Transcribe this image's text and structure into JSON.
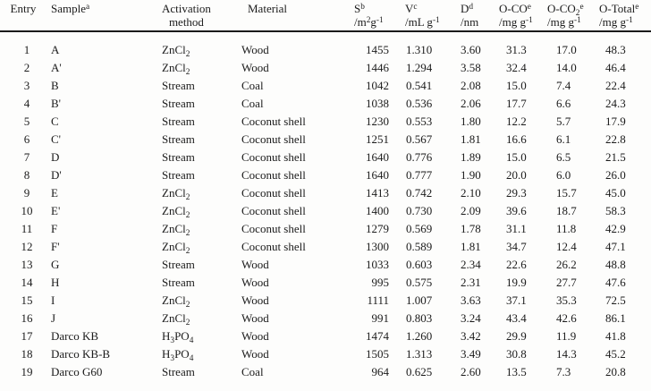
{
  "colors": {
    "background": "#fdfdfc",
    "text": "#1b1b1b",
    "rule": "#1a1a1a"
  },
  "table": {
    "columns": [
      {
        "id": "entry",
        "line1": "Entry",
        "line2": ""
      },
      {
        "id": "sample",
        "line1": "Sample^{a}",
        "line2": ""
      },
      {
        "id": "activation",
        "line1": "Activation",
        "line2": "method"
      },
      {
        "id": "material",
        "line1": "Material",
        "line2": ""
      },
      {
        "id": "s",
        "line1": "S^{b}",
        "line2": "/m^{2}g^{-1}"
      },
      {
        "id": "v",
        "line1": "V^{c}",
        "line2": "/mL g^{-1}"
      },
      {
        "id": "d",
        "line1": "D^{d}",
        "line2": "/nm"
      },
      {
        "id": "o_co",
        "line1": "O-CO^{e}",
        "line2": "/mg g^{-1}"
      },
      {
        "id": "o_co2",
        "line1": "O-CO_{2}^{e}",
        "line2": "/mg g^{-1}"
      },
      {
        "id": "o_total",
        "line1": "O-Total^{e}",
        "line2": "/mg g^{-1}"
      }
    ],
    "rows": [
      [
        "1",
        "A",
        "ZnCl_{2}",
        "Wood",
        "1455",
        "1.310",
        "3.60",
        "31.3",
        "17.0",
        "48.3"
      ],
      [
        "2",
        "A'",
        "ZnCl_{2}",
        "Wood",
        "1446",
        "1.294",
        "3.58",
        "32.4",
        "14.0",
        "46.4"
      ],
      [
        "3",
        "B",
        "Stream",
        "Coal",
        "1042",
        "0.541",
        "2.08",
        "15.0",
        "7.4",
        "22.4"
      ],
      [
        "4",
        "B'",
        "Stream",
        "Coal",
        "1038",
        "0.536",
        "2.06",
        "17.7",
        "6.6",
        "24.3"
      ],
      [
        "5",
        "C",
        "Stream",
        "Coconut shell",
        "1230",
        "0.553",
        "1.80",
        "12.2",
        "5.7",
        "17.9"
      ],
      [
        "6",
        "C'",
        "Stream",
        "Coconut shell",
        "1251",
        "0.567",
        "1.81",
        "16.6",
        "6.1",
        "22.8"
      ],
      [
        "7",
        "D",
        "Stream",
        "Coconut shell",
        "1640",
        "0.776",
        "1.89",
        "15.0",
        "6.5",
        "21.5"
      ],
      [
        "8",
        "D'",
        "Stream",
        "Coconut shell",
        "1640",
        "0.777",
        "1.90",
        "20.0",
        "6.0",
        "26.0"
      ],
      [
        "9",
        "E",
        "ZnCl_{2}",
        "Coconut shell",
        "1413",
        "0.742",
        "2.10",
        "29.3",
        "15.7",
        "45.0"
      ],
      [
        "10",
        "E'",
        "ZnCl_{2}",
        "Coconut shell",
        "1400",
        "0.730",
        "2.09",
        "39.6",
        "18.7",
        "58.3"
      ],
      [
        "11",
        "F",
        "ZnCl_{2}",
        "Coconut shell",
        "1279",
        "0.569",
        "1.78",
        "31.1",
        "11.8",
        "42.9"
      ],
      [
        "12",
        "F'",
        "ZnCl_{2}",
        "Coconut shell",
        "1300",
        "0.589",
        "1.81",
        "34.7",
        "12.4",
        "47.1"
      ],
      [
        "13",
        "G",
        "Stream",
        "Wood",
        "1033",
        "0.603",
        "2.34",
        "22.6",
        "26.2",
        "48.8"
      ],
      [
        "14",
        "H",
        "Stream",
        "Wood",
        "995",
        "0.575",
        "2.31",
        "19.9",
        "27.7",
        "47.6"
      ],
      [
        "15",
        "I",
        "ZnCl_{2}",
        "Wood",
        "1111",
        "1.007",
        "3.63",
        "37.1",
        "35.3",
        "72.5"
      ],
      [
        "16",
        "J",
        "ZnCl_{2}",
        "Wood",
        "991",
        "0.803",
        "3.24",
        "43.4",
        "42.6",
        "86.1"
      ],
      [
        "17",
        "Darco KB",
        "H_{3}PO_{4}",
        "Wood",
        "1474",
        "1.260",
        "3.42",
        "29.9",
        "11.9",
        "41.8"
      ],
      [
        "18",
        "Darco KB-B",
        "H_{3}PO_{4}",
        "Wood",
        "1505",
        "1.313",
        "3.49",
        "30.8",
        "14.3",
        "45.2"
      ],
      [
        "19",
        "Darco G60",
        "Stream",
        "Coal",
        "964",
        "0.625",
        "2.60",
        "13.5",
        "7.3",
        "20.8"
      ]
    ]
  }
}
